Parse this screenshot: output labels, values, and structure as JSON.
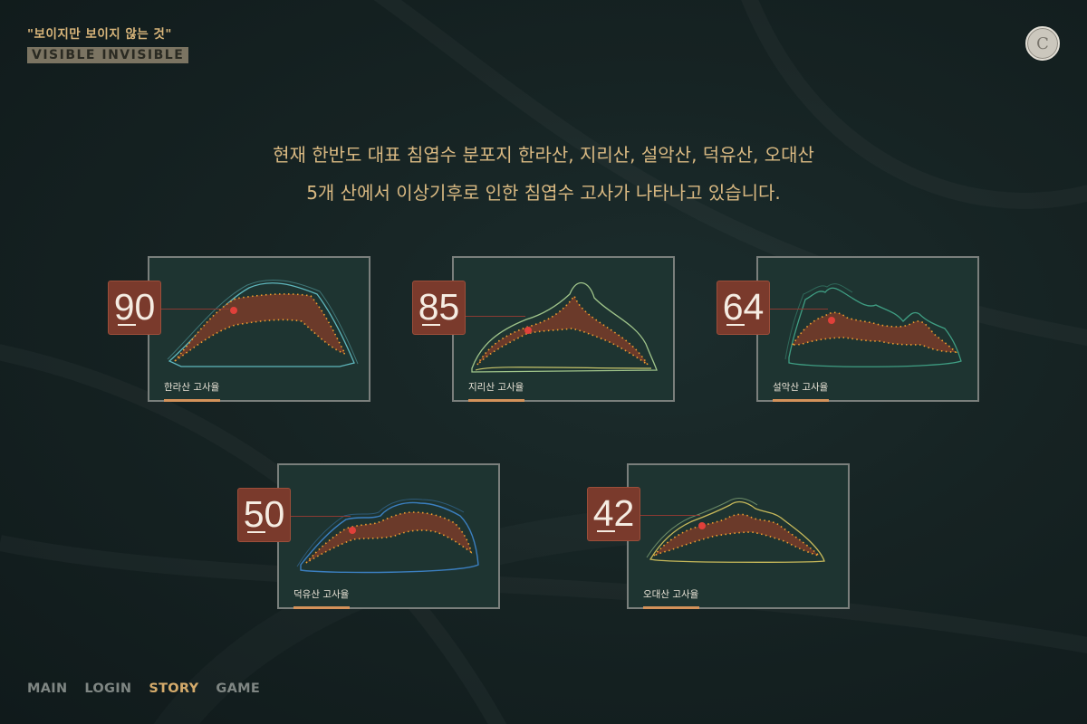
{
  "brand": {
    "quote": "\"보이지만 보이지 않는 것\"",
    "english": "VISIBLE INVISIBLE"
  },
  "logo": {
    "letter": "C"
  },
  "intro": {
    "line1": "현재 한반도 대표 침엽수 분포지 한라산, 지리산, 설악산, 덕유산, 오대산",
    "line2": "5개 산에서 이상기후로 인한 침엽수 고사가 나타나고 있습니다."
  },
  "mountains": [
    {
      "name": "한라산",
      "label": "한라산 고사율",
      "rate": 90,
      "outline_color": "#5fb7bd"
    },
    {
      "name": "지리산",
      "label": "지리산 고사율",
      "rate": 85,
      "outline_color": "#9fc48a"
    },
    {
      "name": "설악산",
      "label": "설악산 고사율",
      "rate": 64,
      "outline_color": "#3f9e83"
    },
    {
      "name": "덕유산",
      "label": "덕유산 고사율",
      "rate": 50,
      "outline_color": "#3b7fc0"
    },
    {
      "name": "오대산",
      "label": "오대산 고사율",
      "rate": 42,
      "outline_color": "#c7b95a"
    }
  ],
  "nav": {
    "items": [
      "MAIN",
      "LOGIN",
      "STORY",
      "GAME"
    ],
    "active": "STORY"
  },
  "colors": {
    "accent": "#d5ab6b",
    "score_bg": "#7a3a2c",
    "band": "#6b3a2a",
    "dot": "#f0a030"
  }
}
